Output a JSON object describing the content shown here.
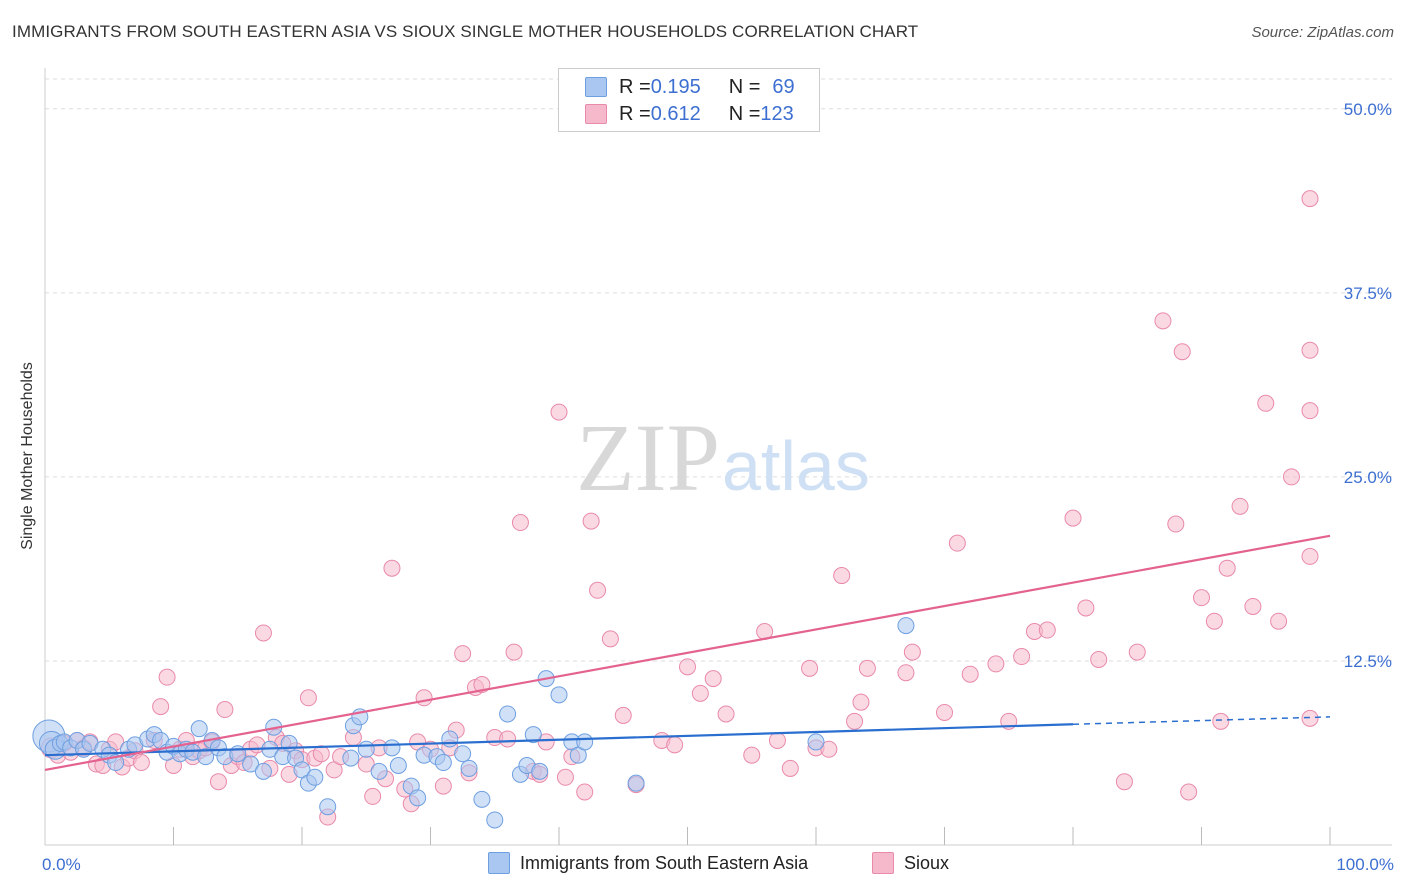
{
  "title": "IMMIGRANTS FROM SOUTH EASTERN ASIA VS SIOUX SINGLE MOTHER HOUSEHOLDS CORRELATION CHART",
  "source": "Source: ZipAtlas.com",
  "watermark": {
    "zip": "ZIP",
    "atlas": "atlas"
  },
  "legend": {
    "series": [
      {
        "r_label": "R = ",
        "r_value": "0.195",
        "n_label": "N = ",
        "n_value": "69"
      },
      {
        "r_label": "R = ",
        "r_value": "0.612",
        "n_label": "N = ",
        "n_value": "123"
      }
    ]
  },
  "colors": {
    "blue_fill": "#a9c7f0",
    "blue_stroke": "#6e9fe0",
    "blue_line": "#2a6fcf",
    "pink_fill": "#f6b9cc",
    "pink_stroke": "#e98aab",
    "pink_line": "#e4628f",
    "tick_label": "#3d6fd1",
    "grid": "#dddddd"
  },
  "chart_data": {
    "type": "scatter",
    "title": "IMMIGRANTS FROM SOUTH EASTERN ASIA VS SIOUX SINGLE MOTHER HOUSEHOLDS CORRELATION CHART",
    "xlabel": "",
    "ylabel": "Single Mother Households",
    "xlim": [
      0,
      100
    ],
    "ylim": [
      0,
      52.5
    ],
    "y_ticks": [
      {
        "value": 12.5,
        "label": "12.5%"
      },
      {
        "value": 25.0,
        "label": "25.0%"
      },
      {
        "value": 37.5,
        "label": "37.5%"
      },
      {
        "value": 50.0,
        "label": "50.0%"
      }
    ],
    "x_tick_labels": [
      {
        "value": 0,
        "label": "0.0%"
      },
      {
        "value": 100,
        "label": "100.0%"
      }
    ],
    "series": [
      {
        "name": "Immigrants from South Eastern Asia",
        "color": "blue",
        "r": 0.195,
        "n": 69,
        "trend": {
          "x0": 0,
          "y0": 6.1,
          "x1": 80,
          "y1": 8.2,
          "dashed_to": 100,
          "dashed_y": 8.7
        },
        "points": [
          [
            0.3,
            7.4,
            16
          ],
          [
            0.5,
            6.9,
            12
          ],
          [
            0.8,
            6.5,
            10
          ],
          [
            1.2,
            6.9,
            8
          ],
          [
            1.5,
            7.0,
            8
          ],
          [
            2,
            6.6,
            8
          ],
          [
            2.5,
            7.1,
            8
          ],
          [
            3,
            6.5,
            8
          ],
          [
            3.5,
            6.9,
            8
          ],
          [
            4.5,
            6.5,
            8
          ],
          [
            5,
            6.1,
            8
          ],
          [
            5.5,
            5.6,
            8
          ],
          [
            6.5,
            6.5,
            8
          ],
          [
            7,
            6.8,
            8
          ],
          [
            8,
            7.2,
            8
          ],
          [
            8.5,
            7.5,
            8
          ],
          [
            9,
            7.1,
            8
          ],
          [
            9.5,
            6.3,
            8
          ],
          [
            10,
            6.7,
            8
          ],
          [
            10.5,
            6.2,
            8
          ],
          [
            11,
            6.5,
            8
          ],
          [
            11.5,
            6.3,
            8
          ],
          [
            12,
            7.9,
            8
          ],
          [
            12.5,
            6.0,
            8
          ],
          [
            13,
            7.1,
            8
          ],
          [
            13.5,
            6.6,
            8
          ],
          [
            14,
            6.0,
            8
          ],
          [
            15,
            6.2,
            8
          ],
          [
            16,
            5.5,
            8
          ],
          [
            17,
            5.0,
            8
          ],
          [
            17.5,
            6.5,
            8
          ],
          [
            17.8,
            8.0,
            8
          ],
          [
            18.5,
            6.0,
            8
          ],
          [
            19,
            6.9,
            8
          ],
          [
            19.5,
            5.9,
            8
          ],
          [
            20,
            5.1,
            8
          ],
          [
            20.5,
            4.2,
            8
          ],
          [
            21,
            4.6,
            8
          ],
          [
            22,
            2.6,
            8
          ],
          [
            23.8,
            5.9,
            8
          ],
          [
            24,
            8.1,
            8
          ],
          [
            24.5,
            8.7,
            8
          ],
          [
            25,
            6.5,
            8
          ],
          [
            26,
            5.0,
            8
          ],
          [
            27,
            6.6,
            8
          ],
          [
            27.5,
            5.4,
            8
          ],
          [
            28.5,
            4.0,
            8
          ],
          [
            29,
            3.2,
            8
          ],
          [
            29.5,
            6.1,
            8
          ],
          [
            30.5,
            6.0,
            8
          ],
          [
            31,
            5.6,
            8
          ],
          [
            31.5,
            7.2,
            8
          ],
          [
            32.5,
            6.2,
            8
          ],
          [
            33,
            5.2,
            8
          ],
          [
            34,
            3.1,
            8
          ],
          [
            35,
            1.7,
            8
          ],
          [
            36,
            8.9,
            8
          ],
          [
            37,
            4.8,
            8
          ],
          [
            37.5,
            5.4,
            8
          ],
          [
            38,
            7.5,
            8
          ],
          [
            38.5,
            5.0,
            8
          ],
          [
            39,
            11.3,
            8
          ],
          [
            40,
            10.2,
            8
          ],
          [
            41,
            7.0,
            8
          ],
          [
            41.5,
            6.1,
            8
          ],
          [
            42,
            7.0,
            8
          ],
          [
            46,
            4.2,
            8
          ],
          [
            60,
            7.0,
            8
          ],
          [
            67,
            14.9,
            8
          ]
        ]
      },
      {
        "name": "Sioux",
        "color": "pink",
        "r": 0.612,
        "n": 123,
        "trend": {
          "x0": 0,
          "y0": 5.1,
          "x1": 100,
          "y1": 21.0
        },
        "points": [
          [
            0.5,
            6.6,
            10
          ],
          [
            1,
            6.1,
            8
          ],
          [
            1.5,
            6.9,
            8
          ],
          [
            2,
            6.3,
            8
          ],
          [
            2.5,
            7.1,
            8
          ],
          [
            3,
            6.6,
            8
          ],
          [
            3.5,
            7.0,
            8
          ],
          [
            4,
            5.5,
            8
          ],
          [
            4.5,
            5.4,
            8
          ],
          [
            5,
            6.5,
            8
          ],
          [
            5.5,
            7.0,
            8
          ],
          [
            6,
            5.3,
            8
          ],
          [
            6.5,
            5.9,
            8
          ],
          [
            7,
            6.4,
            8
          ],
          [
            7.5,
            5.6,
            8
          ],
          [
            8.5,
            7.1,
            8
          ],
          [
            9,
            9.4,
            8
          ],
          [
            9.5,
            11.4,
            8
          ],
          [
            10,
            5.4,
            8
          ],
          [
            10.5,
            6.5,
            8
          ],
          [
            11,
            7.1,
            8
          ],
          [
            11.5,
            6.0,
            8
          ],
          [
            12,
            6.4,
            8
          ],
          [
            12.5,
            6.6,
            8
          ],
          [
            13,
            7.0,
            8
          ],
          [
            13.5,
            4.3,
            8
          ],
          [
            14,
            9.2,
            8
          ],
          [
            14.5,
            5.4,
            8
          ],
          [
            15,
            6.0,
            8
          ],
          [
            15.5,
            5.6,
            8
          ],
          [
            16,
            6.5,
            8
          ],
          [
            16.5,
            6.8,
            8
          ],
          [
            17,
            14.4,
            8
          ],
          [
            17.5,
            5.2,
            8
          ],
          [
            18,
            7.3,
            8
          ],
          [
            18.5,
            6.9,
            8
          ],
          [
            19,
            4.8,
            8
          ],
          [
            19.5,
            6.4,
            8
          ],
          [
            20,
            5.8,
            8
          ],
          [
            20.5,
            10.0,
            8
          ],
          [
            21,
            5.9,
            8
          ],
          [
            21.5,
            6.2,
            8
          ],
          [
            22,
            1.9,
            8
          ],
          [
            22.5,
            5.1,
            8
          ],
          [
            23,
            6.0,
            8
          ],
          [
            24,
            7.3,
            8
          ],
          [
            25,
            5.5,
            8
          ],
          [
            25.5,
            3.3,
            8
          ],
          [
            26,
            6.6,
            8
          ],
          [
            26.5,
            4.5,
            8
          ],
          [
            27,
            18.8,
            8
          ],
          [
            28,
            3.8,
            8
          ],
          [
            28.5,
            2.8,
            8
          ],
          [
            29,
            7.0,
            8
          ],
          [
            29.5,
            10.0,
            8
          ],
          [
            30,
            6.5,
            8
          ],
          [
            31,
            4.0,
            8
          ],
          [
            31.5,
            6.6,
            8
          ],
          [
            32,
            7.8,
            8
          ],
          [
            32.5,
            13.0,
            8
          ],
          [
            33,
            4.9,
            8
          ],
          [
            33.5,
            10.7,
            8
          ],
          [
            34,
            10.9,
            8
          ],
          [
            35,
            7.3,
            8
          ],
          [
            36,
            7.2,
            8
          ],
          [
            36.5,
            13.1,
            8
          ],
          [
            37,
            21.9,
            8
          ],
          [
            38,
            5.0,
            8
          ],
          [
            38.5,
            4.8,
            8
          ],
          [
            39,
            7.0,
            8
          ],
          [
            40,
            29.4,
            8
          ],
          [
            40.5,
            4.6,
            8
          ],
          [
            41,
            6.0,
            8
          ],
          [
            42,
            3.6,
            8
          ],
          [
            42.5,
            22.0,
            8
          ],
          [
            43,
            17.3,
            8
          ],
          [
            44,
            14.0,
            8
          ],
          [
            45,
            8.8,
            8
          ],
          [
            46,
            4.1,
            8
          ],
          [
            48,
            7.1,
            8
          ],
          [
            49,
            6.8,
            8
          ],
          [
            50,
            12.1,
            8
          ],
          [
            51,
            10.3,
            8
          ],
          [
            52,
            11.3,
            8
          ],
          [
            53,
            8.9,
            8
          ],
          [
            55,
            6.1,
            8
          ],
          [
            56,
            14.5,
            8
          ],
          [
            57,
            7.1,
            8
          ],
          [
            58,
            5.2,
            8
          ],
          [
            59.5,
            12.0,
            8
          ],
          [
            60,
            6.6,
            8
          ],
          [
            61,
            6.5,
            8
          ],
          [
            62,
            18.3,
            8
          ],
          [
            63,
            8.4,
            8
          ],
          [
            63.5,
            9.7,
            8
          ],
          [
            64,
            12.0,
            8
          ],
          [
            67,
            11.7,
            8
          ],
          [
            67.5,
            13.1,
            8
          ],
          [
            70,
            9.0,
            8
          ],
          [
            71,
            20.5,
            8
          ],
          [
            72,
            11.6,
            8
          ],
          [
            74,
            12.3,
            8
          ],
          [
            75,
            8.4,
            8
          ],
          [
            76,
            12.8,
            8
          ],
          [
            77,
            14.5,
            8
          ],
          [
            78,
            14.6,
            8
          ],
          [
            80,
            22.2,
            8
          ],
          [
            81,
            16.1,
            8
          ],
          [
            82,
            12.6,
            8
          ],
          [
            84,
            4.3,
            8
          ],
          [
            85,
            13.1,
            8
          ],
          [
            87,
            35.6,
            8
          ],
          [
            88,
            21.8,
            8
          ],
          [
            88.5,
            33.5,
            8
          ],
          [
            89,
            3.6,
            8
          ],
          [
            90,
            16.8,
            8
          ],
          [
            91,
            15.2,
            8
          ],
          [
            91.5,
            8.4,
            8
          ],
          [
            92,
            18.8,
            8
          ],
          [
            93,
            23.0,
            8
          ],
          [
            94,
            16.2,
            8
          ],
          [
            95,
            30.0,
            8
          ],
          [
            96,
            15.2,
            8
          ],
          [
            97,
            25.0,
            8
          ],
          [
            99,
            8.6,
            8
          ],
          [
            99.5,
            29.5,
            8
          ],
          [
            100,
            19.6,
            8
          ],
          [
            101,
            43.9,
            8
          ],
          [
            102,
            33.6,
            8
          ]
        ]
      }
    ]
  },
  "bottom_legend": [
    {
      "label": "Immigrants from South Eastern Asia"
    },
    {
      "label": "Sioux"
    }
  ]
}
